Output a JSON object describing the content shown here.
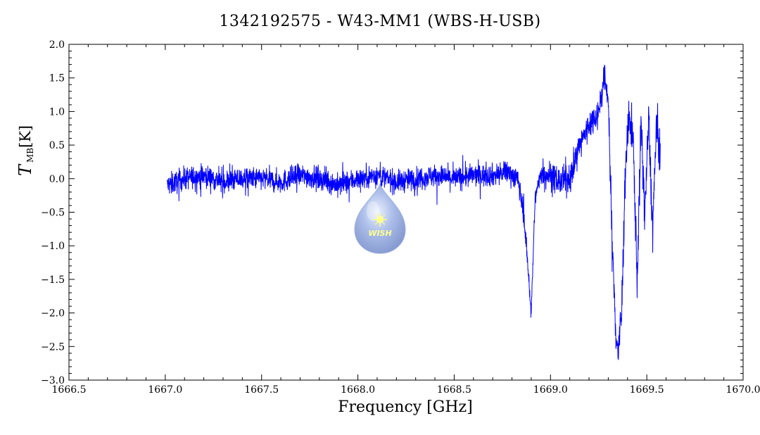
{
  "chart_data": {
    "type": "line",
    "title": "1342192575 - W43-MM1 (WBS-H-USB)",
    "xlabel": "Frequency [GHz]",
    "ylabel": {
      "symbol": "T",
      "subscript": "MB",
      "unit": "[K]"
    },
    "xlim": [
      1666.5,
      1670.0
    ],
    "ylim": [
      -3.0,
      2.0
    ],
    "xticks": [
      "1666.5",
      "1667.0",
      "1667.5",
      "1668.0",
      "1668.5",
      "1669.0",
      "1669.5",
      "1670.0"
    ],
    "yticks": [
      "2.0",
      "1.5",
      "1.0",
      "0.5",
      "0.0",
      "-0.5",
      "-1.0",
      "-1.5",
      "-2.0",
      "-2.5",
      "-3.0"
    ],
    "grid": false,
    "line_color": "#0000ff",
    "series": [
      {
        "x": [
          1667.01,
          1667.1,
          1667.2,
          1667.3,
          1667.4,
          1667.5,
          1667.6,
          1667.7,
          1667.8,
          1667.9,
          1668.0,
          1668.1,
          1668.2,
          1668.3,
          1668.4,
          1668.5,
          1668.6,
          1668.7,
          1668.78,
          1668.83,
          1668.86,
          1668.88,
          1668.9,
          1668.92,
          1668.95,
          1669.0,
          1669.05,
          1669.1,
          1669.15,
          1669.2,
          1669.25,
          1669.28,
          1669.3,
          1669.32,
          1669.34,
          1669.35,
          1669.37,
          1669.39,
          1669.41,
          1669.43,
          1669.45,
          1669.47,
          1669.49,
          1669.51,
          1669.53,
          1669.55,
          1669.57
        ],
        "y": [
          -0.1,
          0.0,
          0.05,
          -0.05,
          0.0,
          0.0,
          -0.05,
          0.05,
          0.0,
          -0.1,
          0.0,
          0.05,
          -0.05,
          0.0,
          0.05,
          0.0,
          0.05,
          0.05,
          0.1,
          0.0,
          -0.5,
          -1.2,
          -2.0,
          -0.3,
          0.1,
          0.05,
          -0.05,
          0.0,
          0.5,
          0.8,
          1.0,
          1.5,
          1.2,
          -1.0,
          -2.3,
          -2.6,
          -2.0,
          0.3,
          0.9,
          0.5,
          -1.5,
          0.8,
          -0.5,
          0.9,
          -0.8,
          0.8,
          0.3
        ]
      }
    ]
  },
  "watermark": {
    "text": "WISH"
  }
}
